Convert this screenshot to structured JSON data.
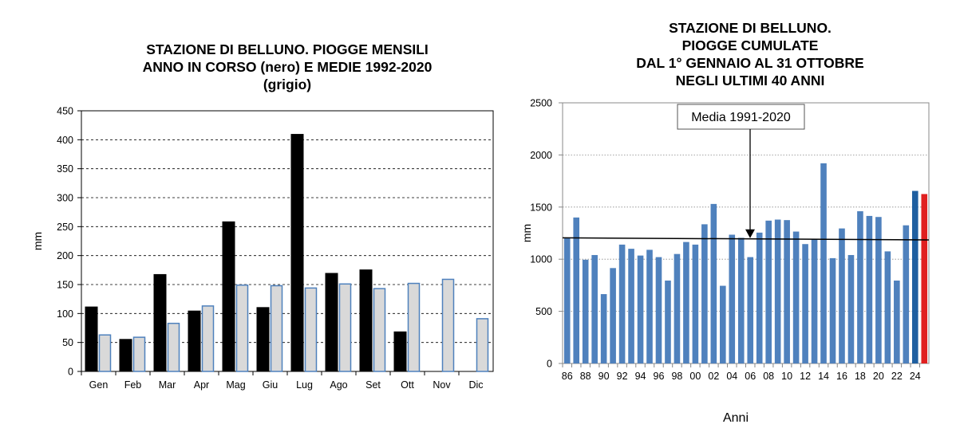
{
  "chart_data": [
    {
      "type": "bar",
      "title_lines": [
        "STAZIONE DI BELLUNO. PIOGGE MENSILI",
        "ANNO IN CORSO (nero) E MEDIE 1992-2020",
        "(grigio)"
      ],
      "ylabel": "mm",
      "xlabel": "",
      "ylim": [
        0,
        450
      ],
      "yticks": [
        0,
        50,
        100,
        150,
        200,
        250,
        300,
        350,
        400,
        450
      ],
      "grid": "horizontal dashed",
      "categories": [
        "Gen",
        "Feb",
        "Mar",
        "Apr",
        "Mag",
        "Giu",
        "Lug",
        "Ago",
        "Set",
        "Ott",
        "Nov",
        "Dic"
      ],
      "series": [
        {
          "name": "nero",
          "color": "#000000",
          "values": [
            112,
            56,
            168,
            105,
            259,
            111,
            410,
            170,
            176,
            69,
            null,
            null
          ]
        },
        {
          "name": "grigio",
          "color": "#d9d9d9",
          "edge": "#4f81bd",
          "values": [
            63,
            59,
            83,
            113,
            149,
            148,
            144,
            151,
            143,
            152,
            159,
            91
          ]
        }
      ]
    },
    {
      "type": "bar",
      "title_lines": [
        "STAZIONE DI BELLUNO.",
        "PIOGGE CUMULATE",
        "DAL 1° GENNAIO AL 31 OTTOBRE",
        "NEGLI ULTIMI 40 ANNI"
      ],
      "ylabel": "mm",
      "xlabel": "Anni",
      "ylim": [
        0,
        2500
      ],
      "yticks": [
        0,
        500,
        1000,
        1500,
        2000,
        2500
      ],
      "grid": "horizontal dotted",
      "x_tick_labels": [
        "86",
        "88",
        "90",
        "92",
        "94",
        "96",
        "98",
        "00",
        "02",
        "04",
        "06",
        "08",
        "10",
        "12",
        "14",
        "16",
        "18",
        "20",
        "22",
        "24"
      ],
      "years": [
        1986,
        1987,
        1988,
        1989,
        1990,
        1991,
        1992,
        1993,
        1994,
        1995,
        1996,
        1997,
        1998,
        1999,
        2000,
        2001,
        2002,
        2003,
        2004,
        2005,
        2006,
        2007,
        2008,
        2009,
        2010,
        2011,
        2012,
        2013,
        2014,
        2015,
        2016,
        2017,
        2018,
        2019,
        2020,
        2021,
        2022,
        2023,
        2024,
        2025
      ],
      "values": [
        1200,
        1400,
        995,
        1040,
        665,
        915,
        1140,
        1100,
        1035,
        1090,
        1020,
        795,
        1050,
        1165,
        1140,
        1335,
        1530,
        745,
        1235,
        1205,
        1020,
        1255,
        1370,
        1380,
        1375,
        1265,
        1145,
        1195,
        1920,
        1010,
        1295,
        1040,
        1460,
        1415,
        1405,
        1075,
        795,
        1325,
        1655,
        1625
      ],
      "bar_colors": {
        "default": "#4f81bd",
        "highlight_2024": "#1f5fa0",
        "current": "#e02020"
      },
      "reference_line": {
        "label": "Media 1991-2020",
        "start_value": 1205,
        "end_value": 1185
      }
    }
  ]
}
